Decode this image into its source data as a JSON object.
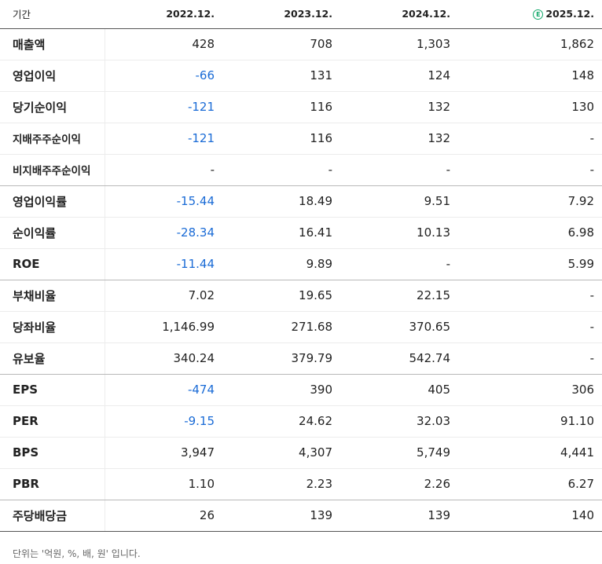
{
  "header": {
    "label": "기간",
    "periods": [
      "2022.12.",
      "2023.12.",
      "2024.12.",
      "2025.12."
    ],
    "estimate_badge": "E"
  },
  "rows": [
    {
      "label": "매출액",
      "values": [
        "428",
        "708",
        "1,303",
        "1,862"
      ]
    },
    {
      "label": "영업이익",
      "values": [
        "-66",
        "131",
        "124",
        "148"
      ]
    },
    {
      "label": "당기순이익",
      "values": [
        "-121",
        "116",
        "132",
        "130"
      ]
    },
    {
      "label": "지배주주순이익",
      "values": [
        "-121",
        "116",
        "132",
        "-"
      ]
    },
    {
      "label": "비지배주주순이익",
      "values": [
        "-",
        "-",
        "-",
        "-"
      ]
    },
    {
      "label": "영업이익률",
      "values": [
        "-15.44",
        "18.49",
        "9.51",
        "7.92"
      ]
    },
    {
      "label": "순이익률",
      "values": [
        "-28.34",
        "16.41",
        "10.13",
        "6.98"
      ]
    },
    {
      "label": "ROE",
      "values": [
        "-11.44",
        "9.89",
        "-",
        "5.99"
      ]
    },
    {
      "label": "부채비율",
      "values": [
        "7.02",
        "19.65",
        "22.15",
        "-"
      ]
    },
    {
      "label": "당좌비율",
      "values": [
        "1,146.99",
        "271.68",
        "370.65",
        "-"
      ]
    },
    {
      "label": "유보율",
      "values": [
        "340.24",
        "379.79",
        "542.74",
        "-"
      ]
    },
    {
      "label": "EPS",
      "values": [
        "-474",
        "390",
        "405",
        "306"
      ]
    },
    {
      "label": "PER",
      "values": [
        "-9.15",
        "24.62",
        "32.03",
        "91.10"
      ]
    },
    {
      "label": "BPS",
      "values": [
        "3,947",
        "4,307",
        "5,749",
        "4,441"
      ]
    },
    {
      "label": "PBR",
      "values": [
        "1.10",
        "2.23",
        "2.26",
        "6.27"
      ]
    },
    {
      "label": "주당배당금",
      "values": [
        "26",
        "139",
        "139",
        "140"
      ]
    }
  ],
  "colors": {
    "negative": "#1a6bd6",
    "estimate": "#12a86b"
  },
  "footnote": "단위는 '억원, %, 배, 원' 입니다."
}
